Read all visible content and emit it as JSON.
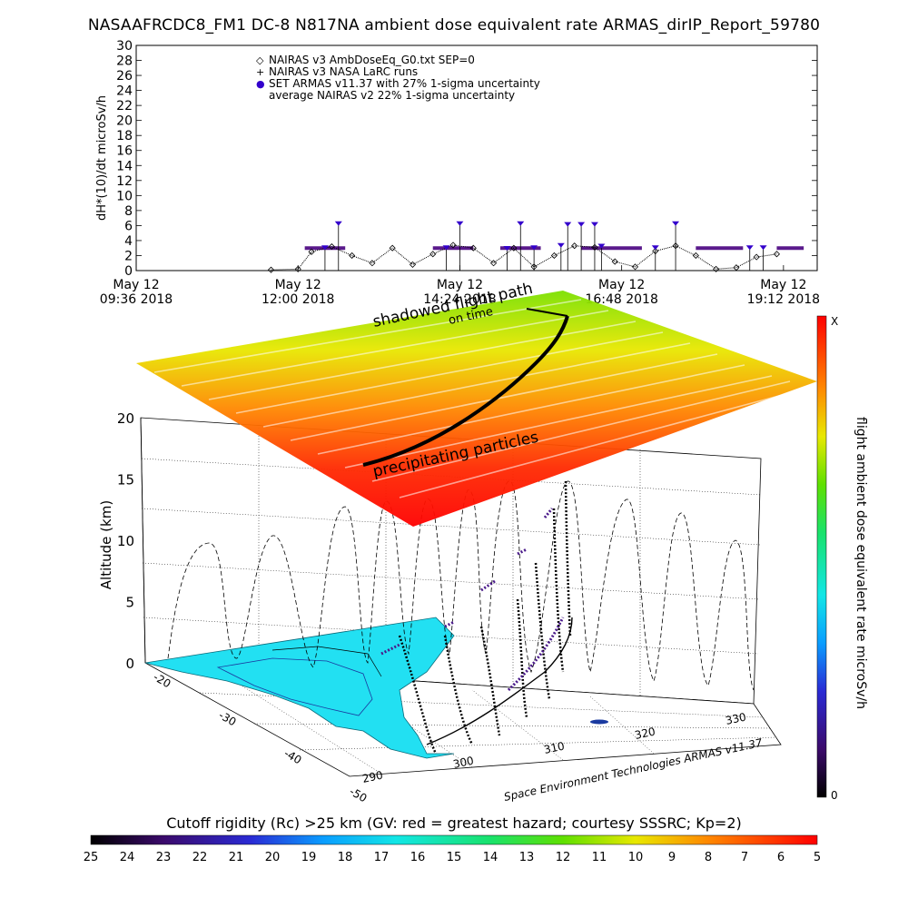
{
  "title": "NASAAFRCDC8_FM1 DC-8   N817NA ambient dose equivalent rate ARMAS_dirIP_Report_59780",
  "chart_data": [
    {
      "type": "scatter",
      "ylabel": "dH*(10)/dt microSv/h",
      "ylim": [
        0,
        30
      ],
      "yticks": [
        "0",
        "2",
        "4",
        "6",
        "8",
        "10",
        "12",
        "14",
        "16",
        "18",
        "20",
        "22",
        "24",
        "26",
        "28",
        "30"
      ],
      "xticks": [
        {
          "line1": "May 12",
          "line2": "09:36 2018",
          "hour": 9.6
        },
        {
          "line1": "May 12",
          "line2": "12:00 2018",
          "hour": 12.0
        },
        {
          "line1": "May 12",
          "line2": "14:24 2018",
          "hour": 14.4
        },
        {
          "line1": "May 12",
          "line2": "16:48 2018",
          "hour": 16.8
        },
        {
          "line1": "May 12",
          "line2": "19:12 2018",
          "hour": 19.2
        }
      ],
      "legend": [
        {
          "symbol": "◇",
          "text": "NAIRAS v3 AmbDoseEq_G0.txt SEP=0"
        },
        {
          "symbol": "+",
          "text": "NAIRAS v3 NASA LaRC runs"
        },
        {
          "symbol": "●",
          "text": "SET ARMAS v11.37 with 27% 1-sigma uncertainty"
        },
        {
          "symbol": "",
          "text": "average NAIRAS v2 22% 1-sigma uncertainty"
        }
      ],
      "series": [
        {
          "name": "NAIRAS v3 AmbDoseEq_G0.txt SEP=0",
          "x_hours": [
            11.6,
            12.0,
            12.2,
            12.5,
            12.8,
            13.1,
            13.4,
            13.7,
            14.0,
            14.3,
            14.6,
            14.9,
            15.2,
            15.5,
            15.8,
            16.1,
            16.4,
            16.7,
            17.0,
            17.3,
            17.6,
            17.9,
            18.2,
            18.5,
            18.8,
            19.1
          ],
          "values": [
            0.1,
            0.2,
            2.5,
            3.2,
            2.0,
            1.0,
            3.0,
            0.8,
            2.2,
            3.4,
            3.0,
            1.0,
            3.0,
            0.5,
            2.0,
            3.3,
            3.1,
            1.2,
            0.5,
            2.6,
            3.3,
            2.0,
            0.2,
            0.4,
            1.8,
            2.2
          ]
        },
        {
          "name": "SET ARMAS v11.37 with 27% 1-sigma uncertainty",
          "x_hours": [
            12.4,
            12.6,
            14.2,
            14.4,
            15.1,
            15.3,
            15.5,
            15.9,
            16.0,
            16.2,
            16.4,
            16.5,
            17.3,
            17.6,
            18.7,
            18.9
          ],
          "values": [
            3.0,
            6.2,
            3.0,
            6.2,
            2.9,
            6.2,
            3.0,
            3.3,
            6.1,
            6.1,
            6.1,
            3.2,
            3.0,
            6.2,
            3.0,
            3.0
          ]
        }
      ]
    },
    {
      "type": "scatter",
      "zlabel": "Altitude (km)",
      "zlim": [
        0,
        20
      ],
      "zticks": [
        "0",
        "5",
        "10",
        "15",
        "20"
      ],
      "lat_ticks": [
        "-20",
        "-30",
        "-40",
        "-50"
      ],
      "lon_ticks": [
        "290",
        "300",
        "310",
        "320",
        "330"
      ],
      "annotations": [
        "shadowed flight path",
        "on time",
        "precipitating particles"
      ],
      "colorbar_label": "flight ambient dose equivalent rate microSv/h",
      "colorbar_top": "X",
      "colorbar_bottom": "0",
      "credit": "Space Environment Technologies ARMAS v11.37"
    },
    {
      "type": "heatmap",
      "label": "Cutoff rigidity (Rc) >25 km (GV: red = greatest hazard; courtesy SSSRC; Kp=2)",
      "ticks": [
        "25",
        "24",
        "23",
        "22",
        "21",
        "20",
        "19",
        "18",
        "17",
        "16",
        "15",
        "14",
        "13",
        "12",
        "11",
        "10",
        "9",
        "8",
        "7",
        "6",
        "5"
      ]
    }
  ],
  "colors": {
    "armas_marker": "#3300cc",
    "bar_purple": "#5a1a8c",
    "ocean_land": "#22e0f2",
    "colormap": [
      "#000000",
      "#3b0a6b",
      "#2a2ad4",
      "#0a9dff",
      "#12e6e6",
      "#19e26b",
      "#5fe000",
      "#e8e800",
      "#ff8800",
      "#ff2a00",
      "#ff0000"
    ]
  }
}
